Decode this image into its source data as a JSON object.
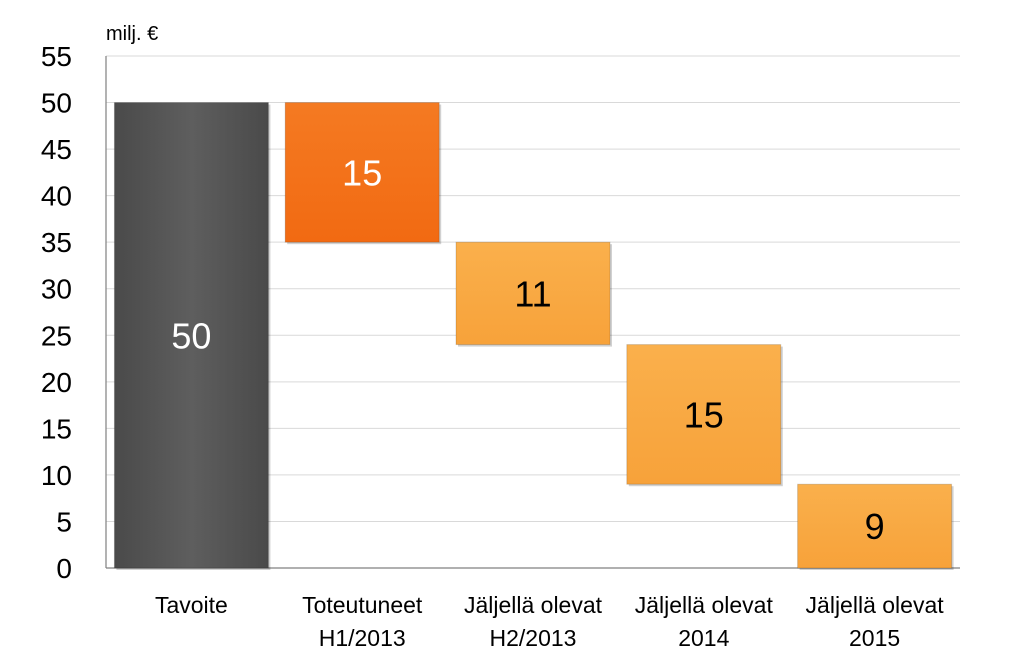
{
  "chart_data": {
    "type": "bar",
    "subtype": "waterfall",
    "unit_label": "milj. €",
    "ylim": [
      0,
      55
    ],
    "yticks": [
      "0",
      "5",
      "10",
      "15",
      "20",
      "25",
      "30",
      "35",
      "40",
      "45",
      "50",
      "55"
    ],
    "grid": true,
    "categories": [
      [
        "Tavoite"
      ],
      [
        "Toteutuneet",
        "H1/2013"
      ],
      [
        "Jäljellä olevat",
        "H2/2013"
      ],
      [
        "Jäljellä olevat",
        "2014"
      ],
      [
        "Jäljellä olevat",
        "2015"
      ]
    ],
    "bars": [
      {
        "base": 0,
        "top": 50,
        "label": "50",
        "color": "#595959",
        "label_color": "#ffffff"
      },
      {
        "base": 35,
        "top": 50,
        "label": "15",
        "color": "#F26E16",
        "label_color": "#ffffff"
      },
      {
        "base": 24,
        "top": 35,
        "label": "11",
        "color": "#F9A840",
        "label_color": "#000000"
      },
      {
        "base": 9,
        "top": 24,
        "label": "15",
        "color": "#F9A840",
        "label_color": "#000000"
      },
      {
        "base": 0,
        "top": 9,
        "label": "9",
        "color": "#F9A840",
        "label_color": "#000000"
      }
    ],
    "gridline_color": "#d9d9d9",
    "axis_color": "#808080"
  }
}
